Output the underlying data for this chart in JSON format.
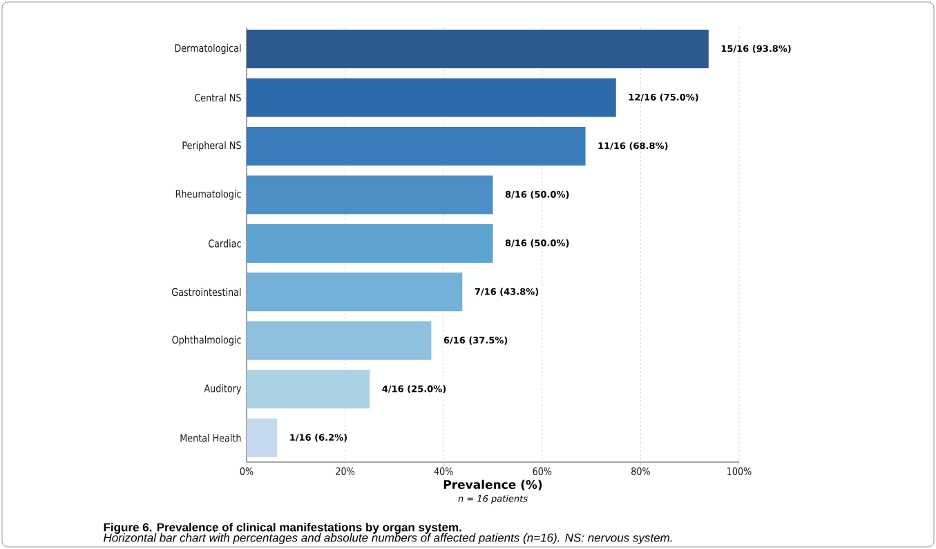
{
  "chart_data": {
    "type": "bar",
    "orientation": "horizontal",
    "title": "Figure 6. Prevalence of clinical manifestations by organ system.",
    "subtitle": "Horizontal bar chart with percentages and absolute numbers of affected patients (n=16). NS: nervous system.",
    "xlabel": "Prevalence (%)",
    "annotations": [
      "n = 16 patients"
    ],
    "categories": [
      "Dermatological",
      "Central NS",
      "Peripheral NS",
      "Rheumatologic",
      "Cardiac",
      "Gastrointestinal",
      "Ophthalmologic",
      "Auditory",
      "Mental Health"
    ],
    "values": [
      93.8,
      75.0,
      68.8,
      50.0,
      50.0,
      43.8,
      37.5,
      25.0,
      6.2
    ],
    "value_labels": [
      "15/16 (93.8%)",
      "12/16 (75.0%)",
      "11/16 (68.8%)",
      "8/16 (50.0%)",
      "8/16 (50.0%)",
      "7/16 (43.8%)",
      "6/16 (37.5%)",
      "4/16 (25.0%)",
      "1/16 (6.2%)"
    ],
    "colors": [
      "#2c5a8e",
      "#2c6aaa",
      "#3a7dbb",
      "#4b8fc6",
      "#5ea4d0",
      "#73b1d7",
      "#8fc0e0",
      "#abd1e5",
      "#c4d9ee"
    ],
    "xlim": [
      0,
      100
    ],
    "xticks": [
      {
        "value": 0,
        "label": "0%"
      },
      {
        "value": 20,
        "label": "20%"
      },
      {
        "value": 40,
        "label": "40%"
      },
      {
        "value": 60,
        "label": "60%"
      },
      {
        "value": 80,
        "label": "80%"
      },
      {
        "value": 100,
        "label": "100%"
      }
    ],
    "grid": "x"
  }
}
